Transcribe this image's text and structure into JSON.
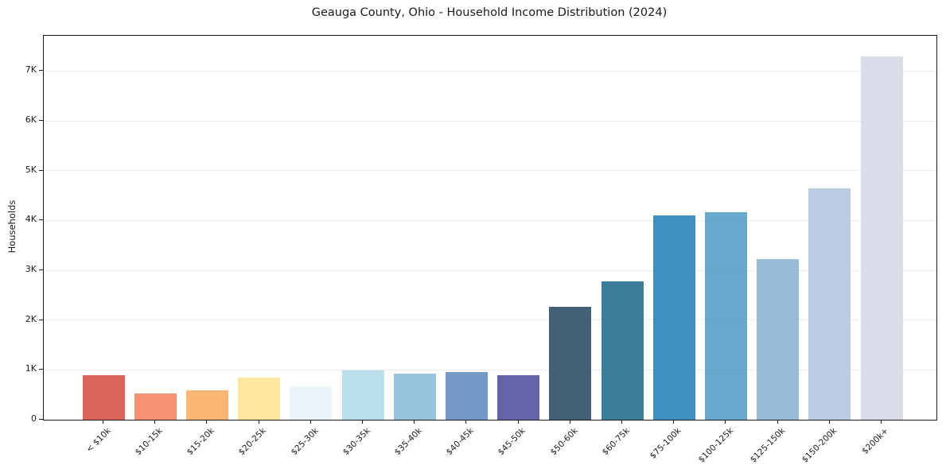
{
  "chart_data": {
    "type": "bar",
    "title": "Geauga County, Ohio - Household Income Distribution (2024)",
    "xlabel": "",
    "ylabel": "Households",
    "categories": [
      "< $10k",
      "$10-15k",
      "$15-20k",
      "$20-25k",
      "$25-30k",
      "$30-35k",
      "$35-40k",
      "$40-45k",
      "$45-50k",
      "$50-60k",
      "$60-75k",
      "$75-100k",
      "$100-125k",
      "$125-150k",
      "$150-200k",
      "$200k+"
    ],
    "values": [
      890,
      520,
      595,
      845,
      670,
      990,
      930,
      955,
      890,
      2270,
      2780,
      4100,
      4170,
      3230,
      4650,
      7300
    ],
    "bar_colors": [
      "#d95a52",
      "#f58a68",
      "#fab36a",
      "#fde599",
      "#eaf4f9",
      "#b7dcea",
      "#93c0dd",
      "#6c93c5",
      "#5a5aa5",
      "#35586d",
      "#2f7494",
      "#3488bd",
      "#5ca4ca",
      "#90b9d9",
      "#b6c9df",
      "#d8dae8"
    ],
    "ytick_labels": [
      "0",
      "1K",
      "2K",
      "3K",
      "4K",
      "5K",
      "6K",
      "7K"
    ],
    "ytick_values": [
      0,
      1000,
      2000,
      3000,
      4000,
      5000,
      6000,
      7000
    ],
    "ylim": [
      0,
      7710
    ],
    "grid": "horizontal",
    "gridline_color": "#ebebeb",
    "spine_color": "#1a1a1a",
    "background": "#ffffff",
    "legend": "none"
  }
}
